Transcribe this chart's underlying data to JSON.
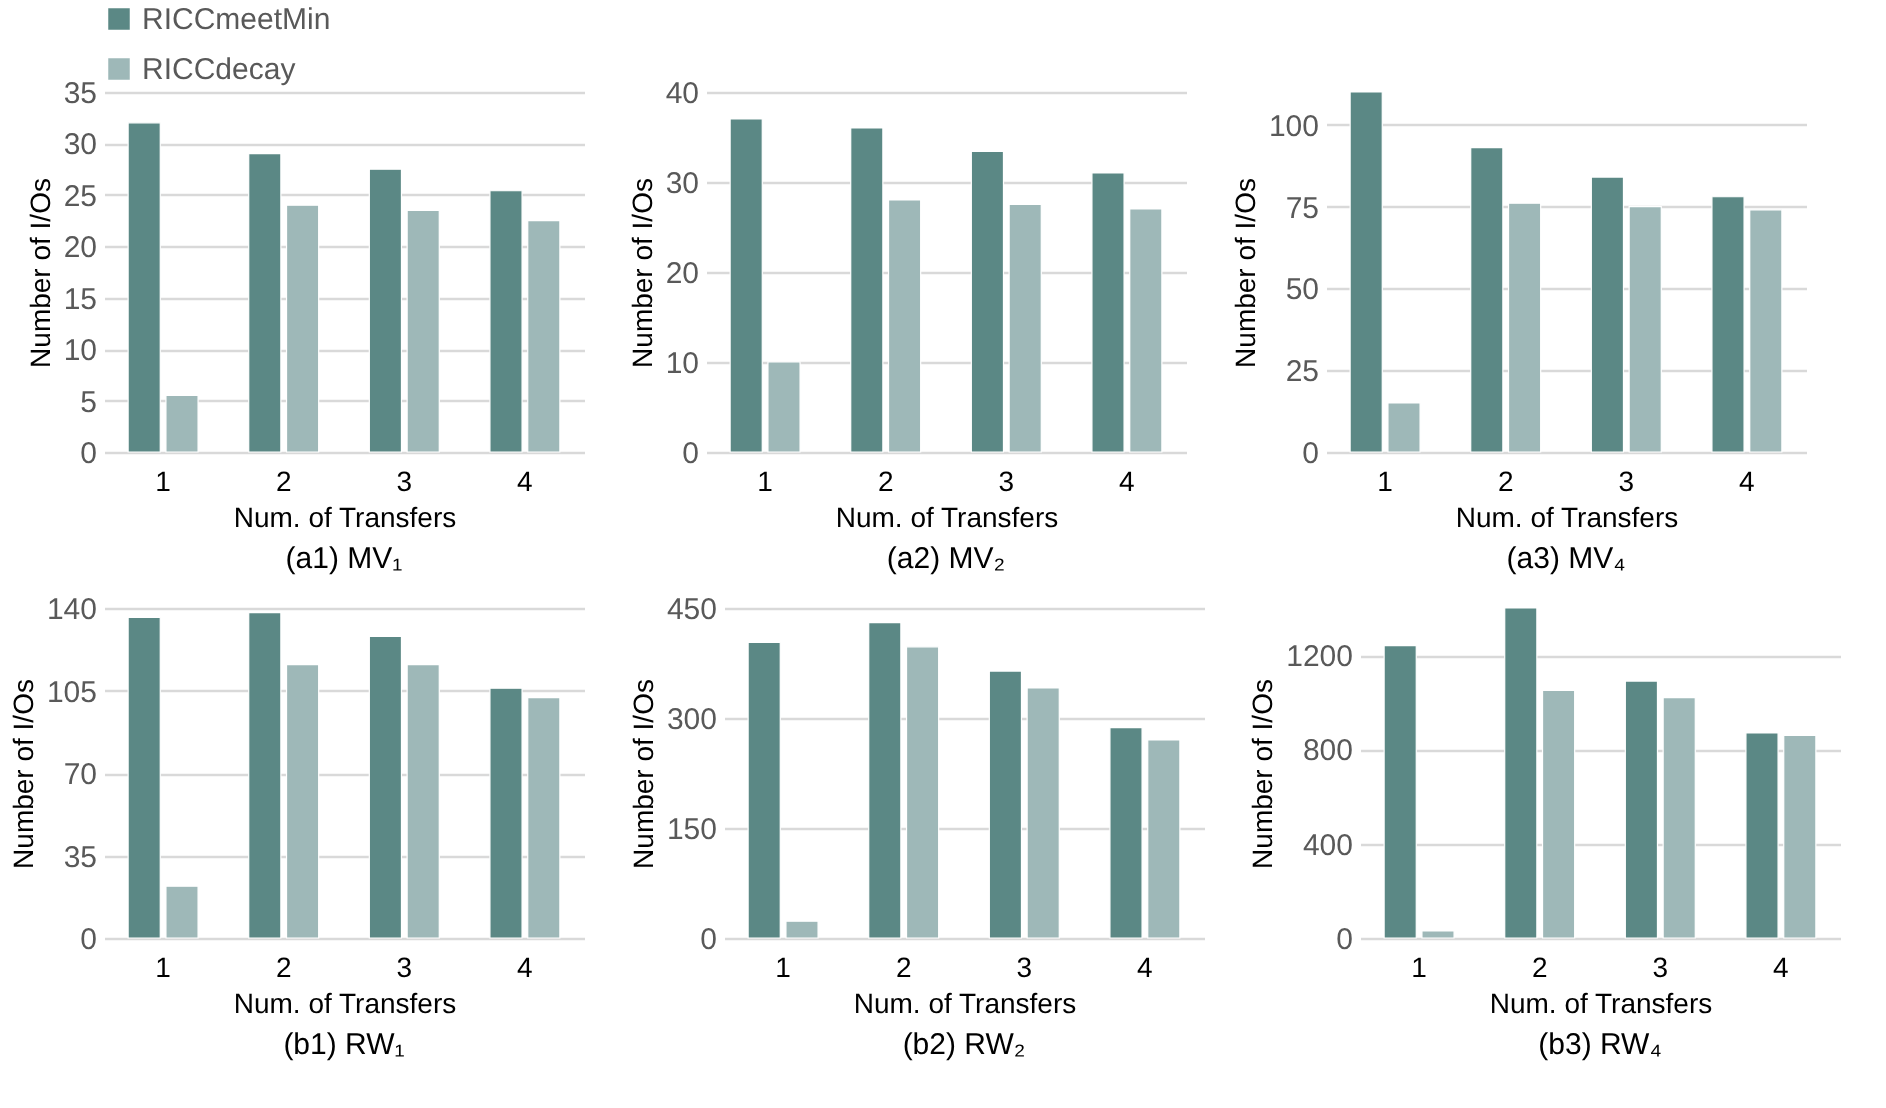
{
  "chart_data": [
    {
      "type": "bar",
      "title": "(a1) MV₁",
      "xlabel": "Num. of Transfers",
      "ylabel": "Number of I/Os",
      "categories": [
        "1",
        "2",
        "3",
        "4"
      ],
      "series": [
        {
          "name": "RICCmeetMin",
          "color": "#5b8885",
          "values": [
            32,
            29,
            27.5,
            25.4
          ]
        },
        {
          "name": "RICCdecay",
          "color": "#9eb8b8",
          "values": [
            5.5,
            24,
            23.5,
            22.5
          ]
        }
      ],
      "ylim": [
        0,
        35
      ],
      "yticks": [
        0,
        5,
        10,
        15,
        20,
        25,
        30,
        35
      ],
      "grid": "y",
      "legend": "top"
    },
    {
      "type": "bar",
      "title": "(a2) MV₂",
      "xlabel": "Num. of Transfers",
      "ylabel": "Number of I/Os",
      "categories": [
        "1",
        "2",
        "3",
        "4"
      ],
      "series": [
        {
          "color": "#5b8885",
          "values": [
            37,
            36,
            33.4,
            31
          ]
        },
        {
          "color": "#9eb8b8",
          "values": [
            10,
            28,
            27.5,
            27
          ]
        }
      ],
      "ylim": [
        0,
        40
      ],
      "yticks": [
        0,
        10,
        20,
        30,
        40
      ],
      "grid": "y"
    },
    {
      "type": "bar",
      "title": "(a3) MV₄",
      "xlabel": "Num. of Transfers",
      "ylabel": "Number of I/Os",
      "categories": [
        "1",
        "2",
        "3",
        "4"
      ],
      "series": [
        {
          "color": "#5b8885",
          "values": [
            110,
            93,
            84,
            78
          ]
        },
        {
          "color": "#9eb8b8",
          "values": [
            15,
            76,
            75,
            74
          ]
        }
      ],
      "ylim": [
        0,
        110
      ],
      "yticks": [
        0,
        25,
        50,
        75,
        100
      ],
      "grid": "y"
    },
    {
      "type": "bar",
      "title": "(b1) RW₁",
      "xlabel": "Num. of Transfers",
      "ylabel": "Number of I/Os",
      "categories": [
        "1",
        "2",
        "3",
        "4"
      ],
      "series": [
        {
          "color": "#5b8885",
          "values": [
            136,
            138,
            128,
            106
          ]
        },
        {
          "color": "#9eb8b8",
          "values": [
            22,
            116,
            116,
            102
          ]
        }
      ],
      "ylim": [
        0,
        140
      ],
      "yticks": [
        0,
        35,
        70,
        105,
        140
      ],
      "grid": "y"
    },
    {
      "type": "bar",
      "title": "(b2) RW₂",
      "xlabel": "Num. of Transfers",
      "ylabel": "Number of I/Os",
      "categories": [
        "1",
        "2",
        "3",
        "4"
      ],
      "series": [
        {
          "color": "#5b8885",
          "values": [
            403,
            430,
            364,
            287
          ]
        },
        {
          "color": "#9eb8b8",
          "values": [
            23,
            397,
            341,
            270
          ]
        }
      ],
      "ylim": [
        0,
        450
      ],
      "yticks": [
        0,
        150,
        300,
        450
      ],
      "grid": "y"
    },
    {
      "type": "bar",
      "title": "(b3) RW₄",
      "xlabel": "Num. of Transfers",
      "ylabel": "Number of I/Os",
      "categories": [
        "1",
        "2",
        "3",
        "4"
      ],
      "series": [
        {
          "color": "#5b8885",
          "values": [
            1240,
            1400,
            1090,
            870
          ]
        },
        {
          "color": "#9eb8b8",
          "values": [
            30,
            1050,
            1020,
            860
          ]
        }
      ],
      "ylim": [
        0,
        1400
      ],
      "yticks": [
        0,
        400,
        800,
        1200
      ],
      "grid": "y"
    }
  ]
}
